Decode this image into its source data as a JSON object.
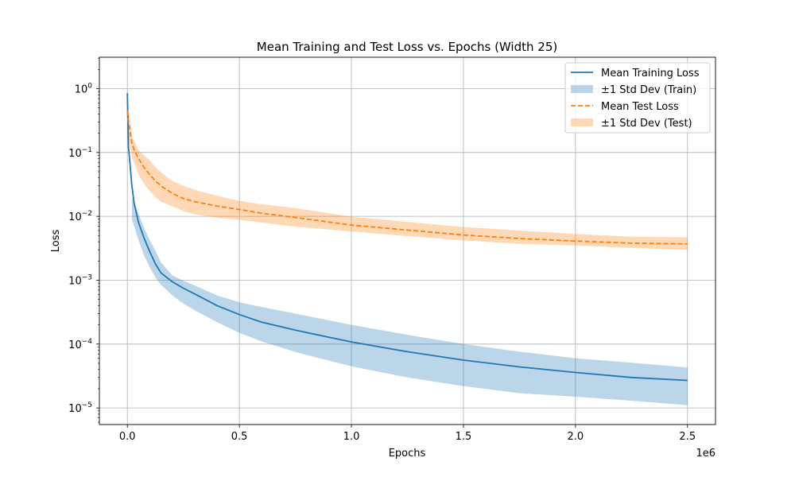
{
  "chart_data": {
    "type": "line",
    "title": "Mean Training and Test Loss vs. Epochs (Width 25)",
    "xlabel": "Epochs",
    "ylabel": "Loss",
    "x_offset_label": "1e6",
    "xscale": "linear",
    "yscale": "log",
    "xlim": [
      -125000,
      2625000
    ],
    "ylim": [
      5.5e-06,
      3.1
    ],
    "grid": true,
    "legend_position": "upper right",
    "x_ticks": [
      {
        "value": 0,
        "label": "0.0"
      },
      {
        "value": 500000,
        "label": "0.5"
      },
      {
        "value": 1000000,
        "label": "1.0"
      },
      {
        "value": 1500000,
        "label": "1.5"
      },
      {
        "value": 2000000,
        "label": "2.0"
      },
      {
        "value": 2500000,
        "label": "2.5"
      }
    ],
    "y_ticks": [
      {
        "value": 1,
        "base": "10",
        "exp": "0"
      },
      {
        "value": 0.1,
        "base": "10",
        "exp": "−1"
      },
      {
        "value": 0.01,
        "base": "10",
        "exp": "−2"
      },
      {
        "value": 0.001,
        "base": "10",
        "exp": "−3"
      },
      {
        "value": 0.0001,
        "base": "10",
        "exp": "−4"
      },
      {
        "value": 1e-05,
        "base": "10",
        "exp": "−5"
      }
    ],
    "series": [
      {
        "name": "Mean Training Loss",
        "kind": "line",
        "color": "#1f77b4",
        "dash": "solid",
        "points": [
          [
            0,
            0.85
          ],
          [
            5000,
            0.12
          ],
          [
            10000,
            0.08
          ],
          [
            20000,
            0.03
          ],
          [
            30000,
            0.016
          ],
          [
            50000,
            0.008
          ],
          [
            75000,
            0.0045
          ],
          [
            100000,
            0.0028
          ],
          [
            125000,
            0.0018
          ],
          [
            150000,
            0.0013
          ],
          [
            200000,
            0.00095
          ],
          [
            250000,
            0.00075
          ],
          [
            300000,
            0.00061
          ],
          [
            400000,
            0.0004
          ],
          [
            500000,
            0.00029
          ],
          [
            600000,
            0.00022
          ],
          [
            750000,
            0.000165
          ],
          [
            1000000,
            0.000108
          ],
          [
            1250000,
            7.6e-05
          ],
          [
            1500000,
            5.6e-05
          ],
          [
            1750000,
            4.4e-05
          ],
          [
            2000000,
            3.6e-05
          ],
          [
            2250000,
            3e-05
          ],
          [
            2500000,
            2.7e-05
          ]
        ]
      },
      {
        "name": "±1 Std Dev (Train)",
        "kind": "band",
        "color": "#1f77b4",
        "opacity": 0.3,
        "points": [
          [
            20000,
            0.009,
            0.02
          ],
          [
            50000,
            0.0042,
            0.011
          ],
          [
            75000,
            0.0024,
            0.0065
          ],
          [
            100000,
            0.0016,
            0.0042
          ],
          [
            125000,
            0.0011,
            0.0029
          ],
          [
            150000,
            0.00085,
            0.0019
          ],
          [
            200000,
            0.00058,
            0.0012
          ],
          [
            250000,
            0.00043,
            0.00098
          ],
          [
            300000,
            0.00034,
            0.00083
          ],
          [
            400000,
            0.00022,
            0.00058
          ],
          [
            500000,
            0.00015,
            0.00045
          ],
          [
            600000,
            0.00011,
            0.00038
          ],
          [
            750000,
            7.5e-05,
            0.0003
          ],
          [
            1000000,
            4.5e-05,
            0.0002
          ],
          [
            1250000,
            3e-05,
            0.00014
          ],
          [
            1500000,
            2.2e-05,
            0.0001
          ],
          [
            1750000,
            1.7e-05,
            7.6e-05
          ],
          [
            2000000,
            1.5e-05,
            6e-05
          ],
          [
            2250000,
            1.3e-05,
            5.1e-05
          ],
          [
            2500000,
            1.1e-05,
            4.3e-05
          ]
        ]
      },
      {
        "name": "Mean Test Loss",
        "kind": "line",
        "color": "#ff7f0e",
        "dash": "dashed",
        "points": [
          [
            0,
            0.45
          ],
          [
            5000,
            0.3
          ],
          [
            10000,
            0.25
          ],
          [
            20000,
            0.14
          ],
          [
            30000,
            0.11
          ],
          [
            50000,
            0.08
          ],
          [
            75000,
            0.058
          ],
          [
            100000,
            0.045
          ],
          [
            125000,
            0.036
          ],
          [
            150000,
            0.03
          ],
          [
            200000,
            0.023
          ],
          [
            250000,
            0.019
          ],
          [
            300000,
            0.017
          ],
          [
            400000,
            0.0145
          ],
          [
            500000,
            0.0128
          ],
          [
            600000,
            0.0112
          ],
          [
            750000,
            0.0096
          ],
          [
            1000000,
            0.0073
          ],
          [
            1250000,
            0.0061
          ],
          [
            1500000,
            0.0051
          ],
          [
            1750000,
            0.0045
          ],
          [
            2000000,
            0.0041
          ],
          [
            2250000,
            0.0038
          ],
          [
            2500000,
            0.0037
          ]
        ]
      },
      {
        "name": "±1 Std Dev (Test)",
        "kind": "band",
        "color": "#ff7f0e",
        "opacity": 0.3,
        "points": [
          [
            5000,
            0.19,
            0.45
          ],
          [
            10000,
            0.14,
            0.38
          ],
          [
            20000,
            0.085,
            0.18
          ],
          [
            50000,
            0.045,
            0.11
          ],
          [
            75000,
            0.032,
            0.09
          ],
          [
            100000,
            0.025,
            0.075
          ],
          [
            125000,
            0.02,
            0.058
          ],
          [
            150000,
            0.017,
            0.049
          ],
          [
            200000,
            0.0145,
            0.036
          ],
          [
            250000,
            0.012,
            0.03
          ],
          [
            300000,
            0.0108,
            0.026
          ],
          [
            400000,
            0.0095,
            0.021
          ],
          [
            500000,
            0.0088,
            0.0175
          ],
          [
            600000,
            0.008,
            0.0155
          ],
          [
            750000,
            0.0069,
            0.0135
          ],
          [
            1000000,
            0.0058,
            0.0098
          ],
          [
            1250000,
            0.0049,
            0.0082
          ],
          [
            1500000,
            0.0042,
            0.0068
          ],
          [
            1750000,
            0.0037,
            0.006
          ],
          [
            2000000,
            0.0035,
            0.0053
          ],
          [
            2250000,
            0.0032,
            0.0048
          ],
          [
            2500000,
            0.003,
            0.0047
          ]
        ]
      }
    ]
  }
}
